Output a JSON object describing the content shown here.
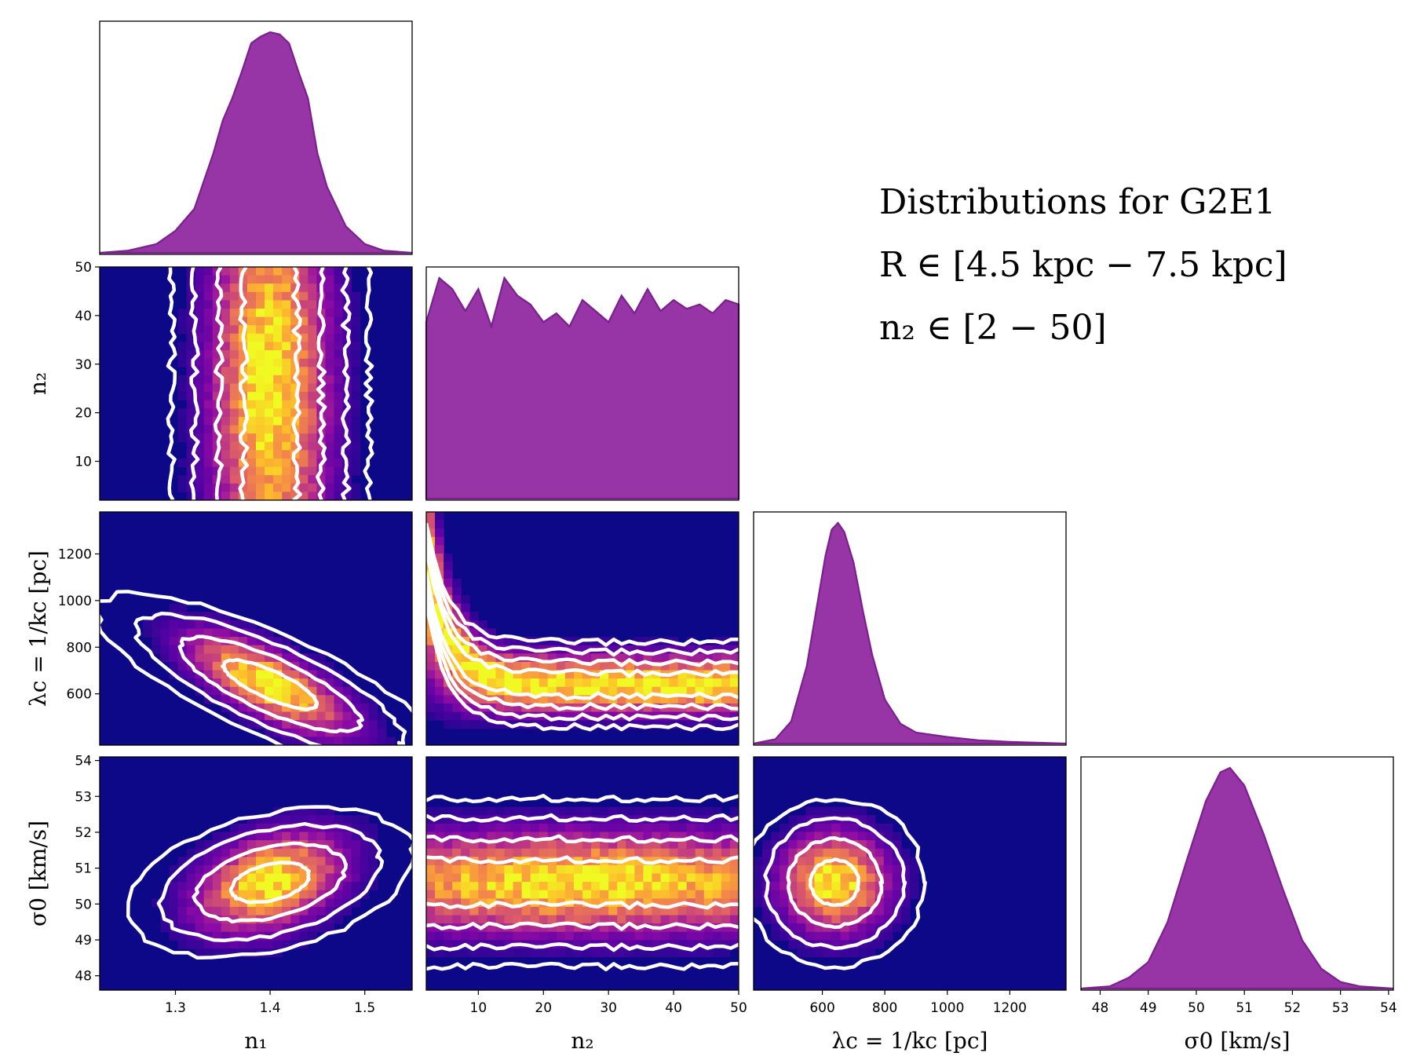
{
  "chart_data": {
    "type": "corner",
    "title": "Distributions for G2E1",
    "annotations": [
      "Distributions for G2E1",
      "R ∈ [4.5 kpc − 7.5 kpc]",
      "n₂ ∈ [2 − 50]"
    ],
    "colormap": "plasma",
    "contour_color": "#ffffff",
    "hist_fill": "#8e24a0",
    "hist_edge": "#7b1f8f",
    "background": "#0d0887",
    "parameters": [
      {
        "name": "n1",
        "label": "n₁",
        "range": [
          1.22,
          1.55
        ],
        "ticks": [
          1.3,
          1.4,
          1.5
        ],
        "tick_labels": [
          "1.3",
          "1.4",
          "1.5"
        ],
        "peak": 1.4
      },
      {
        "name": "n2",
        "label": "n₂",
        "range": [
          2,
          50
        ],
        "ticks": [
          10,
          20,
          30,
          40,
          50
        ],
        "tick_labels": [
          "10",
          "20",
          "30",
          "40",
          "50"
        ],
        "peak": null
      },
      {
        "name": "lambda_c",
        "label": "λc = 1/kc [pc]",
        "range": [
          380,
          1380
        ],
        "ticks": [
          600,
          800,
          1000,
          1200
        ],
        "tick_labels": [
          "600",
          "800",
          "1000",
          "1200"
        ],
        "peak": 640
      },
      {
        "name": "sigma0",
        "label": "σ0 [km/s]",
        "range": [
          47.6,
          54.1
        ],
        "ticks": [
          48,
          49,
          50,
          51,
          52,
          53,
          54
        ],
        "tick_labels": [
          "48",
          "49",
          "50",
          "51",
          "52",
          "53",
          "54"
        ],
        "peak": 50.6
      }
    ],
    "x_axis_labels": [
      "n₁",
      "n₂",
      "λc = 1/kc [pc]",
      "σ0 [km/s]"
    ],
    "y_axis_labels": [
      "n₂",
      "λc = 1/kc [pc]",
      "σ0 [km/s]"
    ],
    "histograms": [
      {
        "param": "n1",
        "x": [
          1.22,
          1.25,
          1.28,
          1.3,
          1.32,
          1.34,
          1.35,
          1.36,
          1.37,
          1.38,
          1.39,
          1.4,
          1.41,
          1.42,
          1.43,
          1.44,
          1.45,
          1.46,
          1.48,
          1.5,
          1.52,
          1.55
        ],
        "y": [
          0.0,
          0.01,
          0.04,
          0.1,
          0.2,
          0.45,
          0.6,
          0.7,
          0.82,
          0.95,
          0.98,
          1.0,
          0.99,
          0.95,
          0.82,
          0.7,
          0.45,
          0.3,
          0.12,
          0.04,
          0.01,
          0.0
        ]
      },
      {
        "param": "n2",
        "x": [
          2,
          4,
          6,
          8,
          10,
          12,
          14,
          16,
          18,
          20,
          22,
          24,
          26,
          28,
          30,
          32,
          34,
          36,
          38,
          40,
          42,
          44,
          46,
          48,
          50
        ],
        "y": [
          0.8,
          1.0,
          0.95,
          0.85,
          0.95,
          0.78,
          1.0,
          0.92,
          0.88,
          0.8,
          0.84,
          0.78,
          0.9,
          0.85,
          0.8,
          0.92,
          0.84,
          0.95,
          0.85,
          0.9,
          0.86,
          0.88,
          0.84,
          0.9,
          0.88
        ]
      },
      {
        "param": "lambda_c",
        "x": [
          380,
          450,
          500,
          550,
          580,
          610,
          630,
          650,
          670,
          700,
          730,
          760,
          800,
          850,
          900,
          1000,
          1100,
          1200,
          1380
        ],
        "y": [
          0.0,
          0.02,
          0.1,
          0.35,
          0.6,
          0.85,
          0.97,
          1.0,
          0.96,
          0.82,
          0.6,
          0.4,
          0.2,
          0.09,
          0.05,
          0.03,
          0.015,
          0.008,
          0.0
        ]
      },
      {
        "param": "sigma0",
        "x": [
          47.6,
          48.2,
          48.6,
          49.0,
          49.4,
          49.8,
          50.2,
          50.5,
          50.7,
          51.0,
          51.4,
          51.8,
          52.2,
          52.6,
          53.0,
          53.4,
          54.1
        ],
        "y": [
          0.0,
          0.01,
          0.05,
          0.12,
          0.3,
          0.58,
          0.85,
          0.98,
          1.0,
          0.92,
          0.7,
          0.45,
          0.22,
          0.09,
          0.03,
          0.01,
          0.0
        ]
      }
    ],
    "joint_panels": [
      {
        "x": "n1",
        "y": "n2",
        "center": [
          1.4,
          26
        ],
        "sigma": [
          0.04,
          30
        ],
        "corr": 0.0
      },
      {
        "x": "n1",
        "y": "lambda_c",
        "center": [
          1.4,
          640
        ],
        "sigma": [
          0.055,
          140
        ],
        "corr": -0.72
      },
      {
        "x": "n2",
        "y": "lambda_c",
        "center": [
          26,
          640
        ],
        "sigma": [
          30,
          70
        ],
        "corr": 0.0
      },
      {
        "x": "n1",
        "y": "sigma0",
        "center": [
          1.4,
          50.6
        ],
        "sigma": [
          0.05,
          0.9
        ],
        "corr": 0.35
      },
      {
        "x": "n2",
        "y": "sigma0",
        "center": [
          26,
          50.6
        ],
        "sigma": [
          30,
          0.9
        ],
        "corr": 0.0
      },
      {
        "x": "lambda_c",
        "y": "sigma0",
        "center": [
          640,
          50.6
        ],
        "sigma": [
          110,
          0.9
        ],
        "corr": 0.0
      }
    ]
  }
}
